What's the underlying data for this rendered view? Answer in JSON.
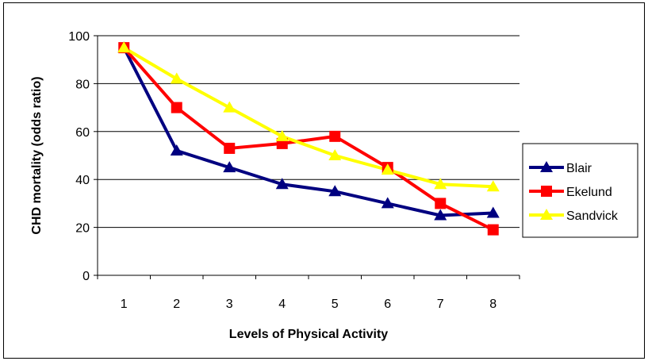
{
  "chart_data": {
    "type": "line",
    "title": "",
    "xlabel": "Levels of Physical Activity",
    "ylabel": "CHD mortality (odds ratio)",
    "x": [
      1,
      2,
      3,
      4,
      5,
      6,
      7,
      8
    ],
    "ylim": [
      0,
      100
    ],
    "yticks": [
      0,
      20,
      40,
      60,
      80,
      100
    ],
    "grid": true,
    "legend_position": "right",
    "series": [
      {
        "name": "Blair",
        "color": "#000080",
        "marker": "triangle",
        "values": [
          95,
          52,
          45,
          38,
          35,
          30,
          25,
          26
        ]
      },
      {
        "name": "Ekelund",
        "color": "#ff0000",
        "marker": "square",
        "values": [
          95,
          70,
          53,
          55,
          58,
          45,
          30,
          19
        ]
      },
      {
        "name": "Sandvick",
        "color": "#ffff00",
        "marker": "triangle",
        "values": [
          95,
          82,
          70,
          58,
          50,
          44,
          38,
          37
        ]
      }
    ]
  }
}
